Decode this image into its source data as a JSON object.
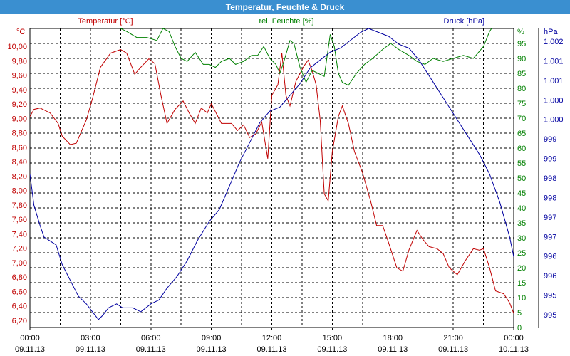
{
  "window": {
    "title": "Temperatur, Feuchte & Druck"
  },
  "colors": {
    "temperature": "#c00000",
    "humidity": "#008000",
    "pressure": "#0000a0",
    "grid": "#000000",
    "title_bar": "#3a8fd0"
  },
  "chart_data": {
    "type": "line",
    "title": "Temperatur, Feuchte & Druck",
    "grid": true,
    "x_ticks": [
      {
        "time": "00:00",
        "date": "09.11.13"
      },
      {
        "time": "03:00",
        "date": "09.11.13"
      },
      {
        "time": "06:00",
        "date": "09.11.13"
      },
      {
        "time": "09:00",
        "date": "09.11.13"
      },
      {
        "time": "12:00",
        "date": "09.11.13"
      },
      {
        "time": "15:00",
        "date": "09.11.13"
      },
      {
        "time": "18:00",
        "date": "09.11.13"
      },
      {
        "time": "21:00",
        "date": "09.11.13"
      },
      {
        "time": "00:00",
        "date": "10.11.13"
      }
    ],
    "axes": {
      "temperature": {
        "label": "Temperatur [°C]",
        "unit": "°C",
        "range": [
          6.1,
          10.35
        ],
        "ticks": [
          "10,00",
          "9,80",
          "9,60",
          "9,40",
          "9,20",
          "9,00",
          "8,80",
          "8,60",
          "8,40",
          "8,20",
          "8,00",
          "7,80",
          "7,60",
          "7,40",
          "7,20",
          "7,00",
          "6,80",
          "6,60",
          "6,40",
          "6,20"
        ]
      },
      "humidity": {
        "label": "rel. Feuchte [%]",
        "unit": "%",
        "range": [
          0,
          100
        ],
        "ticks": [
          "95",
          "90",
          "85",
          "80",
          "75",
          "70",
          "65",
          "60",
          "55",
          "50",
          "45",
          "40",
          "35",
          "30",
          "25",
          "20",
          "15",
          "10",
          "5",
          "0"
        ]
      },
      "pressure": {
        "label": "Druck [hPa]",
        "unit": "hPa",
        "range": [
          994.6,
          1002.2
        ],
        "ticks": [
          "1.002",
          "1.001",
          "1.001",
          "1.000",
          "1.000",
          "999",
          "999",
          "998",
          "998",
          "997",
          "997",
          "996",
          "996",
          "995",
          "995"
        ]
      }
    },
    "series": [
      {
        "name": "Temperatur [°C]",
        "axis": "temperature",
        "color": "#c00000",
        "points": [
          [
            0,
            9.1
          ],
          [
            0.2,
            9.2
          ],
          [
            0.5,
            9.22
          ],
          [
            1.0,
            9.15
          ],
          [
            1.4,
            9.0
          ],
          [
            1.6,
            8.82
          ],
          [
            2.0,
            8.7
          ],
          [
            2.3,
            8.72
          ],
          [
            2.8,
            9.05
          ],
          [
            3.1,
            9.35
          ],
          [
            3.5,
            9.8
          ],
          [
            4.0,
            10.0
          ],
          [
            4.5,
            10.05
          ],
          [
            4.8,
            10.0
          ],
          [
            5.2,
            9.7
          ],
          [
            5.5,
            9.8
          ],
          [
            5.9,
            9.92
          ],
          [
            6.2,
            9.85
          ],
          [
            6.5,
            9.4
          ],
          [
            6.8,
            9.0
          ],
          [
            7.2,
            9.2
          ],
          [
            7.6,
            9.32
          ],
          [
            7.9,
            9.15
          ],
          [
            8.2,
            9.0
          ],
          [
            8.5,
            9.22
          ],
          [
            8.8,
            9.15
          ],
          [
            9.0,
            9.28
          ],
          [
            9.5,
            9.0
          ],
          [
            10.0,
            9.0
          ],
          [
            10.3,
            8.9
          ],
          [
            10.6,
            8.98
          ],
          [
            10.9,
            8.8
          ],
          [
            11.2,
            8.85
          ],
          [
            11.5,
            9.02
          ],
          [
            11.8,
            8.5
          ],
          [
            12.0,
            9.4
          ],
          [
            12.3,
            9.55
          ],
          [
            12.5,
            10.0
          ],
          [
            12.7,
            9.4
          ],
          [
            12.9,
            9.25
          ],
          [
            13.2,
            9.6
          ],
          [
            13.6,
            9.82
          ],
          [
            13.8,
            9.9
          ],
          [
            14.0,
            9.75
          ],
          [
            14.2,
            9.55
          ],
          [
            14.4,
            9.05
          ],
          [
            14.6,
            8.0
          ],
          [
            14.8,
            7.9
          ],
          [
            15.0,
            8.6
          ],
          [
            15.3,
            9.1
          ],
          [
            15.5,
            9.25
          ],
          [
            15.8,
            9.0
          ],
          [
            16.1,
            8.6
          ],
          [
            16.5,
            8.3
          ],
          [
            16.9,
            7.9
          ],
          [
            17.2,
            7.55
          ],
          [
            17.5,
            7.55
          ],
          [
            17.8,
            7.3
          ],
          [
            18.2,
            6.95
          ],
          [
            18.5,
            6.9
          ],
          [
            18.8,
            7.2
          ],
          [
            19.2,
            7.48
          ],
          [
            19.5,
            7.35
          ],
          [
            19.8,
            7.25
          ],
          [
            20.2,
            7.22
          ],
          [
            20.5,
            7.15
          ],
          [
            20.8,
            6.95
          ],
          [
            21.2,
            6.85
          ],
          [
            21.6,
            7.05
          ],
          [
            22.0,
            7.22
          ],
          [
            22.3,
            7.2
          ],
          [
            22.5,
            7.22
          ],
          [
            22.8,
            6.95
          ],
          [
            23.1,
            6.62
          ],
          [
            23.5,
            6.58
          ],
          [
            23.8,
            6.45
          ],
          [
            24.0,
            6.3
          ]
        ]
      },
      {
        "name": "rel. Feuchte [%]",
        "axis": "humidity",
        "color": "#008000",
        "points": [
          [
            4.5,
            100
          ],
          [
            4.8,
            99
          ],
          [
            5.3,
            97
          ],
          [
            5.8,
            97
          ],
          [
            6.3,
            96
          ],
          [
            6.6,
            100
          ],
          [
            6.9,
            99
          ],
          [
            7.2,
            94
          ],
          [
            7.5,
            90
          ],
          [
            7.8,
            89
          ],
          [
            8.2,
            92
          ],
          [
            8.6,
            88
          ],
          [
            8.9,
            88
          ],
          [
            9.2,
            87
          ],
          [
            9.5,
            89
          ],
          [
            9.9,
            90
          ],
          [
            10.2,
            88
          ],
          [
            10.6,
            89
          ],
          [
            11.0,
            91
          ],
          [
            11.3,
            91
          ],
          [
            11.6,
            94
          ],
          [
            11.9,
            90
          ],
          [
            12.2,
            88
          ],
          [
            12.4,
            85
          ],
          [
            12.6,
            89
          ],
          [
            12.9,
            96
          ],
          [
            13.1,
            95
          ],
          [
            13.4,
            87
          ],
          [
            13.7,
            82
          ],
          [
            14.0,
            86
          ],
          [
            14.3,
            85
          ],
          [
            14.6,
            84
          ],
          [
            14.9,
            98
          ],
          [
            15.1,
            94
          ],
          [
            15.3,
            85
          ],
          [
            15.5,
            82
          ],
          [
            15.8,
            81
          ],
          [
            16.2,
            85
          ],
          [
            16.6,
            88
          ],
          [
            17.0,
            90
          ],
          [
            17.5,
            93
          ],
          [
            17.9,
            95
          ],
          [
            18.3,
            93
          ],
          [
            18.8,
            91
          ],
          [
            19.2,
            89
          ],
          [
            19.6,
            88
          ],
          [
            20.0,
            90
          ],
          [
            20.5,
            89
          ],
          [
            21.0,
            90
          ],
          [
            21.5,
            91
          ],
          [
            22.0,
            90
          ],
          [
            22.5,
            94
          ],
          [
            22.8,
            99
          ],
          [
            23.0,
            101
          ]
        ]
      },
      {
        "name": "Druck [hPa]",
        "axis": "pressure",
        "color": "#0000a0",
        "points": [
          [
            0,
            998.5
          ],
          [
            0.2,
            997.7
          ],
          [
            0.5,
            997.2
          ],
          [
            0.7,
            996.9
          ],
          [
            1.0,
            996.8
          ],
          [
            1.3,
            996.7
          ],
          [
            1.6,
            996.2
          ],
          [
            2.0,
            995.8
          ],
          [
            2.4,
            995.4
          ],
          [
            2.8,
            995.2
          ],
          [
            3.1,
            995.0
          ],
          [
            3.4,
            994.8
          ],
          [
            3.6,
            994.9
          ],
          [
            3.9,
            995.1
          ],
          [
            4.3,
            995.2
          ],
          [
            4.6,
            995.1
          ],
          [
            5.1,
            995.1
          ],
          [
            5.5,
            995.0
          ],
          [
            6.0,
            995.2
          ],
          [
            6.4,
            995.3
          ],
          [
            6.8,
            995.6
          ],
          [
            7.3,
            995.9
          ],
          [
            7.8,
            996.3
          ],
          [
            8.3,
            996.8
          ],
          [
            8.9,
            997.3
          ],
          [
            9.4,
            997.6
          ],
          [
            9.9,
            998.2
          ],
          [
            10.4,
            998.8
          ],
          [
            10.9,
            999.3
          ],
          [
            11.4,
            999.8
          ],
          [
            11.9,
            1000.1
          ],
          [
            12.4,
            1000.2
          ],
          [
            12.9,
            1000.5
          ],
          [
            13.4,
            1000.8
          ],
          [
            13.9,
            1001.2
          ],
          [
            14.4,
            1001.4
          ],
          [
            14.9,
            1001.6
          ],
          [
            15.4,
            1001.7
          ],
          [
            15.9,
            1001.9
          ],
          [
            16.4,
            1002.1
          ],
          [
            16.8,
            1002.2
          ],
          [
            17.3,
            1002.1
          ],
          [
            17.8,
            1002.0
          ],
          [
            18.3,
            1001.8
          ],
          [
            18.8,
            1001.7
          ],
          [
            19.3,
            1001.4
          ],
          [
            19.8,
            1001.0
          ],
          [
            20.3,
            1000.6
          ],
          [
            20.8,
            1000.2
          ],
          [
            21.3,
            999.8
          ],
          [
            21.8,
            999.4
          ],
          [
            22.3,
            999.0
          ],
          [
            22.8,
            998.5
          ],
          [
            23.3,
            997.8
          ],
          [
            23.8,
            996.9
          ],
          [
            24.0,
            996.4
          ]
        ]
      }
    ]
  }
}
